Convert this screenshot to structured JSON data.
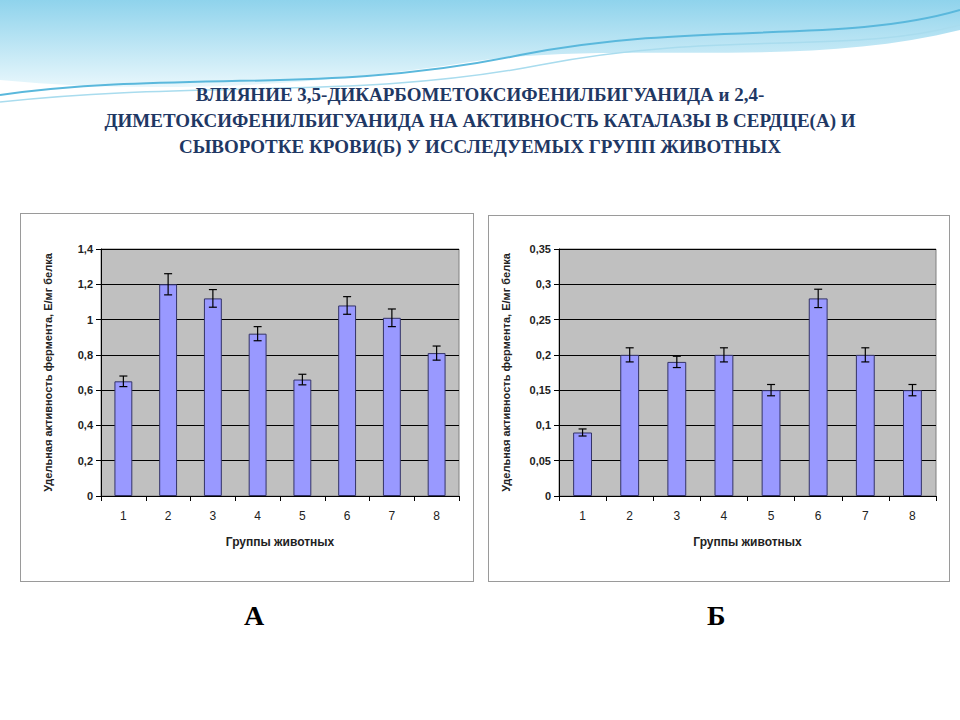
{
  "title": "ВЛИЯНИЕ 3,5-ДИКАРБОМЕТОКСИФЕНИЛБИГУАНИДА и 2,4-ДИМЕТОКСИФЕНИЛБИГУАНИДА НА АКТИВНОСТЬ КАТАЛАЗЫ В СЕРДЦЕ(А) И СЫВОРОТКЕ КРОВИ(Б) У ИССЛЕДУЕМЫХ ГРУПП ЖИВОТНЫХ",
  "chart_data": [
    {
      "type": "bar",
      "caption": "А",
      "categories": [
        "1",
        "2",
        "3",
        "4",
        "5",
        "6",
        "7",
        "8"
      ],
      "values": [
        0.65,
        1.2,
        1.12,
        0.92,
        0.66,
        1.08,
        1.01,
        0.81
      ],
      "errors": [
        0.03,
        0.06,
        0.05,
        0.04,
        0.03,
        0.05,
        0.05,
        0.04
      ],
      "color": "#9999ff",
      "x_label": "Группы животных",
      "y_label": "Удельная активность фермента, Е/мг белка",
      "ylim": [
        0,
        1.4
      ],
      "yticks": [
        0,
        {
          "value": 0.2,
          "label": "0,2"
        },
        {
          "value": 0.4,
          "label": "0,4"
        },
        {
          "value": 0.6,
          "label": "0,6"
        },
        {
          "value": 0.8,
          "label": "0,8"
        },
        1,
        {
          "value": 1.2,
          "label": "1,2"
        },
        {
          "value": 1.4,
          "label": "1,4"
        }
      ],
      "grid": true
    },
    {
      "type": "bar",
      "caption": "Б",
      "categories": [
        "1",
        "2",
        "3",
        "4",
        "5",
        "6",
        "7",
        "8"
      ],
      "values": [
        0.09,
        0.2,
        0.19,
        0.2,
        0.15,
        0.28,
        0.2,
        0.15
      ],
      "errors": [
        0.005,
        0.01,
        0.008,
        0.01,
        0.008,
        0.013,
        0.01,
        0.008
      ],
      "color": "#9999ff",
      "x_label": "Группы животных",
      "y_label": "Удельная активность фермента, Е/мг белка",
      "ylim": [
        0,
        0.35
      ],
      "yticks": [
        0,
        {
          "value": 0.05,
          "label": "0,05"
        },
        {
          "value": 0.1,
          "label": "0,1"
        },
        {
          "value": 0.15,
          "label": "0,15"
        },
        {
          "value": 0.2,
          "label": "0,2"
        },
        {
          "value": 0.25,
          "label": "0,25"
        },
        {
          "value": 0.3,
          "label": "0,3"
        },
        {
          "value": 0.35,
          "label": "0,35"
        }
      ],
      "grid": true
    }
  ]
}
